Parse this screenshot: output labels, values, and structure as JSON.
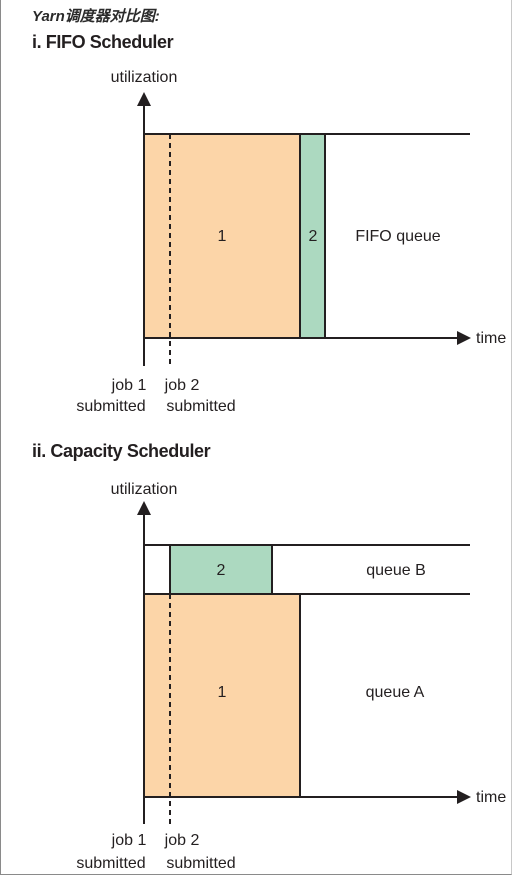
{
  "page": {
    "heading": "Yarn调度器对比图:"
  },
  "colors": {
    "job1_fill": "#fcd5a8",
    "job2_fill": "#acd9c0",
    "stroke": "#231f20"
  },
  "fifo": {
    "title": "i. FIFO Scheduler",
    "y_axis_label": "utilization",
    "x_axis_label": "time",
    "job1_label": "1",
    "job2_label": "2",
    "queue_label": "FIFO queue",
    "job1_marker": {
      "line1": "job 1",
      "line2": "submitted"
    },
    "job2_marker": {
      "line1": "job 2",
      "line2": "submitted"
    }
  },
  "capacity": {
    "title": "ii. Capacity Scheduler",
    "y_axis_label": "utilization",
    "x_axis_label": "time",
    "job1_label": "1",
    "job2_label": "2",
    "queue_a_label": "queue A",
    "queue_b_label": "queue B",
    "job1_marker": {
      "line1": "job 1",
      "line2": "submitted"
    },
    "job2_marker": {
      "line1": "job 2",
      "line2": "submitted"
    }
  }
}
